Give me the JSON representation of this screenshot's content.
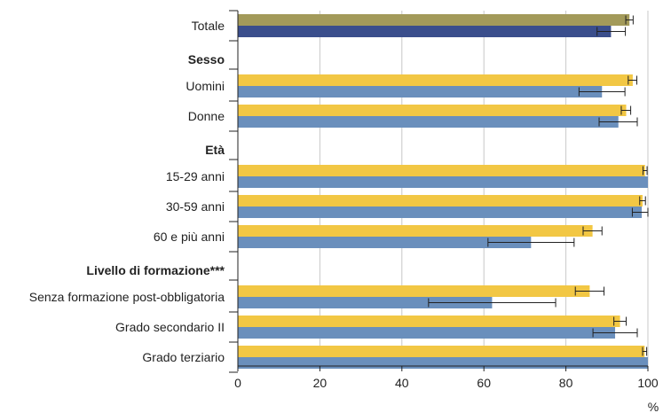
{
  "chart_data": {
    "type": "bar",
    "orientation": "horizontal",
    "xlim": [
      0,
      100
    ],
    "xticks": [
      0,
      20,
      40,
      60,
      80,
      100
    ],
    "xunit": "%",
    "grid": true,
    "colors": {
      "total_top": "#a39a5a",
      "total_bottom": "#3a4e8c",
      "top": "#f2c744",
      "bottom": "#6a8fbc",
      "grid": "#c8c8c8",
      "axis": "#222222"
    },
    "groups": [
      {
        "header": "",
        "rows": [
          {
            "label": "Totale",
            "top": 95.5,
            "top_err": [
              94.6,
              96.4
            ],
            "bottom": 91.0,
            "bottom_err": [
              87.6,
              94.5
            ],
            "total": true
          }
        ]
      },
      {
        "header": "Sesso",
        "rows": [
          {
            "label": "Uomini",
            "top": 96.3,
            "top_err": [
              95.2,
              97.3
            ],
            "bottom": 88.8,
            "bottom_err": [
              83.2,
              94.4
            ]
          },
          {
            "label": "Donne",
            "top": 94.7,
            "top_err": [
              93.5,
              95.8
            ],
            "bottom": 92.8,
            "bottom_err": [
              88.1,
              97.4
            ]
          }
        ]
      },
      {
        "header": "Età",
        "rows": [
          {
            "label": "15-29 anni",
            "top": 99.3,
            "top_err": [
              98.8,
              99.8
            ],
            "bottom": 100,
            "bottom_err": null
          },
          {
            "label": "30-59 anni",
            "top": 98.7,
            "top_err": [
              98.0,
              99.4
            ],
            "bottom": 98.5,
            "bottom_err": [
              96.2,
              100
            ]
          },
          {
            "label": "60 e più anni",
            "top": 86.5,
            "top_err": [
              84.2,
              88.8
            ],
            "bottom": 71.5,
            "bottom_err": [
              61.0,
              82.0
            ]
          }
        ]
      },
      {
        "header": "Livello di formazione***",
        "rows": [
          {
            "label": "Senza formazione post-obbligatoria",
            "top": 85.8,
            "top_err": [
              82.3,
              89.3
            ],
            "bottom": 62.0,
            "bottom_err": [
              46.5,
              77.5
            ]
          },
          {
            "label": "Grado secondario II",
            "top": 93.2,
            "top_err": [
              91.7,
              94.7
            ],
            "bottom": 92.0,
            "bottom_err": [
              86.6,
              97.4
            ]
          },
          {
            "label": "Grado terziario",
            "top": 99.2,
            "top_err": [
              98.7,
              99.7
            ],
            "bottom": 100,
            "bottom_err": null
          }
        ]
      }
    ]
  }
}
